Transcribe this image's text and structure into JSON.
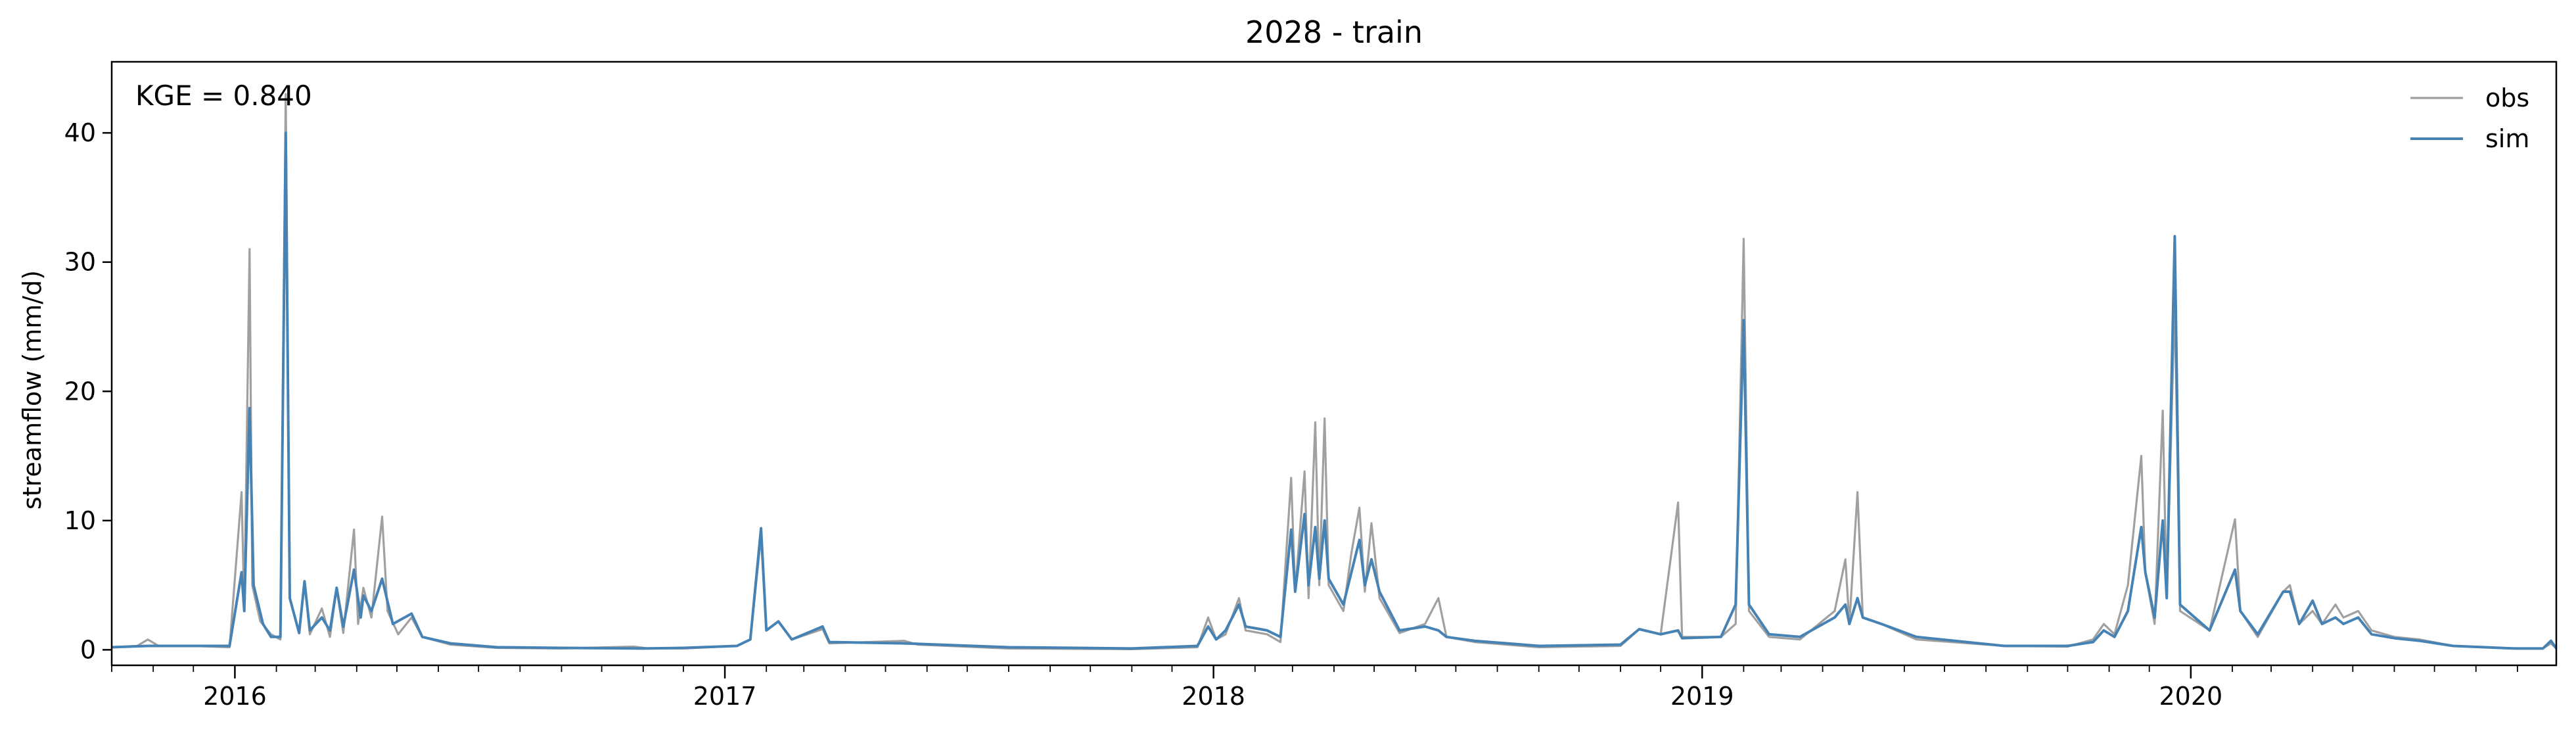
{
  "chart_data": {
    "type": "line",
    "title": "2028 - train",
    "xlabel": "",
    "ylabel": "streamflow (mm/d)",
    "annotation": "KGE = 0.840",
    "x_range": [
      "2015-10-01",
      "2020-09-30"
    ],
    "ylim": [
      -1.2,
      45.5
    ],
    "y_ticks": [
      0,
      10,
      20,
      30,
      40
    ],
    "x_ticks": [
      {
        "label": "2016",
        "date": "2016-01-01"
      },
      {
        "label": "2017",
        "date": "2017-01-01"
      },
      {
        "label": "2018",
        "date": "2018-01-01"
      },
      {
        "label": "2019",
        "date": "2019-01-01"
      },
      {
        "label": "2020",
        "date": "2020-01-01"
      }
    ],
    "grid": false,
    "legend_position": "top-right",
    "series": [
      {
        "name": "obs",
        "color": "#a0a0a0",
        "points": [
          [
            "2015-10-01",
            0.2
          ],
          [
            "2015-10-20",
            0.3
          ],
          [
            "2015-10-28",
            0.8
          ],
          [
            "2015-11-05",
            0.3
          ],
          [
            "2015-12-01",
            0.3
          ],
          [
            "2015-12-28",
            0.2
          ],
          [
            "2016-01-06",
            12.2
          ],
          [
            "2016-01-08",
            3.2
          ],
          [
            "2016-01-12",
            31.0
          ],
          [
            "2016-01-14",
            5.0
          ],
          [
            "2016-01-20",
            2.2
          ],
          [
            "2016-01-28",
            1.2
          ],
          [
            "2016-02-04",
            0.8
          ],
          [
            "2016-02-08",
            43.0
          ],
          [
            "2016-02-11",
            4.0
          ],
          [
            "2016-02-18",
            1.3
          ],
          [
            "2016-02-22",
            5.3
          ],
          [
            "2016-02-26",
            1.2
          ],
          [
            "2016-03-06",
            3.2
          ],
          [
            "2016-03-12",
            1.0
          ],
          [
            "2016-03-17",
            4.8
          ],
          [
            "2016-03-22",
            1.3
          ],
          [
            "2016-03-30",
            9.3
          ],
          [
            "2016-04-02",
            2.0
          ],
          [
            "2016-04-06",
            4.8
          ],
          [
            "2016-04-12",
            2.5
          ],
          [
            "2016-04-20",
            10.3
          ],
          [
            "2016-04-24",
            3.0
          ],
          [
            "2016-05-02",
            1.2
          ],
          [
            "2016-05-12",
            2.5
          ],
          [
            "2016-05-20",
            1.0
          ],
          [
            "2016-06-10",
            0.4
          ],
          [
            "2016-07-15",
            0.15
          ],
          [
            "2016-09-01",
            0.1
          ],
          [
            "2016-10-25",
            0.25
          ],
          [
            "2016-11-05",
            0.1
          ],
          [
            "2016-12-01",
            0.1
          ],
          [
            "2017-01-10",
            0.3
          ],
          [
            "2017-01-20",
            0.8
          ],
          [
            "2017-01-28",
            8.8
          ],
          [
            "2017-02-01",
            1.5
          ],
          [
            "2017-02-10",
            2.2
          ],
          [
            "2017-02-20",
            0.8
          ],
          [
            "2017-03-15",
            1.6
          ],
          [
            "2017-03-20",
            0.5
          ],
          [
            "2017-05-15",
            0.7
          ],
          [
            "2017-05-25",
            0.4
          ],
          [
            "2017-08-01",
            0.1
          ],
          [
            "2017-11-01",
            0.05
          ],
          [
            "2017-12-20",
            0.2
          ],
          [
            "2017-12-28",
            2.5
          ],
          [
            "2018-01-03",
            0.8
          ],
          [
            "2018-01-10",
            1.2
          ],
          [
            "2018-01-20",
            4.0
          ],
          [
            "2018-01-25",
            1.5
          ],
          [
            "2018-02-10",
            1.2
          ],
          [
            "2018-02-20",
            0.6
          ],
          [
            "2018-02-28",
            13.3
          ],
          [
            "2018-03-03",
            4.5
          ],
          [
            "2018-03-10",
            13.8
          ],
          [
            "2018-03-13",
            4.0
          ],
          [
            "2018-03-18",
            17.6
          ],
          [
            "2018-03-21",
            5.0
          ],
          [
            "2018-03-25",
            17.9
          ],
          [
            "2018-03-28",
            5.0
          ],
          [
            "2018-04-08",
            3.0
          ],
          [
            "2018-04-14",
            7.5
          ],
          [
            "2018-04-20",
            11.0
          ],
          [
            "2018-04-24",
            4.5
          ],
          [
            "2018-04-29",
            9.8
          ],
          [
            "2018-05-05",
            4.0
          ],
          [
            "2018-05-20",
            1.3
          ],
          [
            "2018-06-08",
            2.0
          ],
          [
            "2018-06-18",
            4.0
          ],
          [
            "2018-06-24",
            1.0
          ],
          [
            "2018-07-15",
            0.6
          ],
          [
            "2018-09-01",
            0.2
          ],
          [
            "2018-11-01",
            0.3
          ],
          [
            "2018-11-15",
            1.6
          ],
          [
            "2018-12-01",
            1.2
          ],
          [
            "2018-12-14",
            11.4
          ],
          [
            "2018-12-17",
            1.0
          ],
          [
            "2019-01-15",
            1.0
          ],
          [
            "2019-01-26",
            2.0
          ],
          [
            "2019-02-01",
            31.8
          ],
          [
            "2019-02-05",
            3.0
          ],
          [
            "2019-02-20",
            1.0
          ],
          [
            "2019-03-15",
            0.8
          ],
          [
            "2019-04-10",
            3.0
          ],
          [
            "2019-04-18",
            7.0
          ],
          [
            "2019-04-21",
            2.0
          ],
          [
            "2019-04-27",
            12.2
          ],
          [
            "2019-05-01",
            2.5
          ],
          [
            "2019-05-15",
            2.0
          ],
          [
            "2019-06-10",
            0.8
          ],
          [
            "2019-08-15",
            0.3
          ],
          [
            "2019-10-01",
            0.25
          ],
          [
            "2019-10-20",
            0.8
          ],
          [
            "2019-10-28",
            2.0
          ],
          [
            "2019-11-05",
            1.2
          ],
          [
            "2019-11-15",
            5.0
          ],
          [
            "2019-11-25",
            15.0
          ],
          [
            "2019-11-28",
            6.0
          ],
          [
            "2019-12-05",
            2.0
          ],
          [
            "2019-12-11",
            18.5
          ],
          [
            "2019-12-14",
            4.0
          ],
          [
            "2019-12-20",
            27.0
          ],
          [
            "2019-12-24",
            3.0
          ],
          [
            "2020-01-15",
            1.5
          ],
          [
            "2020-02-03",
            10.1
          ],
          [
            "2020-02-07",
            3.0
          ],
          [
            "2020-02-20",
            1.0
          ],
          [
            "2020-03-10",
            4.5
          ],
          [
            "2020-03-15",
            5.0
          ],
          [
            "2020-03-22",
            2.0
          ],
          [
            "2020-04-01",
            3.0
          ],
          [
            "2020-04-08",
            2.0
          ],
          [
            "2020-04-18",
            3.5
          ],
          [
            "2020-04-24",
            2.5
          ],
          [
            "2020-05-05",
            3.0
          ],
          [
            "2020-05-15",
            1.5
          ],
          [
            "2020-06-01",
            1.0
          ],
          [
            "2020-06-20",
            0.8
          ],
          [
            "2020-07-15",
            0.3
          ],
          [
            "2020-08-30",
            0.1
          ],
          [
            "2020-09-20",
            0.1
          ],
          [
            "2020-09-26",
            0.5
          ],
          [
            "2020-09-30",
            0.1
          ]
        ]
      },
      {
        "name": "sim",
        "color": "#4682b4",
        "points": [
          [
            "2015-10-01",
            0.2
          ],
          [
            "2015-10-28",
            0.3
          ],
          [
            "2015-12-01",
            0.3
          ],
          [
            "2015-12-28",
            0.3
          ],
          [
            "2016-01-06",
            6.0
          ],
          [
            "2016-01-08",
            3.0
          ],
          [
            "2016-01-12",
            18.7
          ],
          [
            "2016-01-15",
            5.0
          ],
          [
            "2016-01-22",
            2.0
          ],
          [
            "2016-01-28",
            1.0
          ],
          [
            "2016-02-04",
            1.0
          ],
          [
            "2016-02-08",
            40.0
          ],
          [
            "2016-02-11",
            4.0
          ],
          [
            "2016-02-18",
            1.3
          ],
          [
            "2016-02-22",
            5.3
          ],
          [
            "2016-02-26",
            1.5
          ],
          [
            "2016-03-06",
            2.5
          ],
          [
            "2016-03-12",
            1.5
          ],
          [
            "2016-03-17",
            4.8
          ],
          [
            "2016-03-22",
            1.8
          ],
          [
            "2016-03-30",
            6.2
          ],
          [
            "2016-04-04",
            2.5
          ],
          [
            "2016-04-06",
            4.2
          ],
          [
            "2016-04-12",
            3.0
          ],
          [
            "2016-04-20",
            5.5
          ],
          [
            "2016-04-28",
            2.0
          ],
          [
            "2016-05-12",
            2.8
          ],
          [
            "2016-05-20",
            1.0
          ],
          [
            "2016-06-10",
            0.5
          ],
          [
            "2016-07-15",
            0.2
          ],
          [
            "2016-09-01",
            0.15
          ],
          [
            "2016-11-01",
            0.1
          ],
          [
            "2016-12-01",
            0.15
          ],
          [
            "2017-01-10",
            0.3
          ],
          [
            "2017-01-20",
            0.8
          ],
          [
            "2017-01-28",
            9.4
          ],
          [
            "2017-02-01",
            1.5
          ],
          [
            "2017-02-10",
            2.2
          ],
          [
            "2017-02-20",
            0.8
          ],
          [
            "2017-03-15",
            1.8
          ],
          [
            "2017-03-20",
            0.6
          ],
          [
            "2017-05-15",
            0.5
          ],
          [
            "2017-08-01",
            0.2
          ],
          [
            "2017-11-01",
            0.1
          ],
          [
            "2017-12-20",
            0.3
          ],
          [
            "2017-12-28",
            1.8
          ],
          [
            "2018-01-03",
            0.8
          ],
          [
            "2018-01-10",
            1.5
          ],
          [
            "2018-01-20",
            3.5
          ],
          [
            "2018-01-25",
            1.8
          ],
          [
            "2018-02-10",
            1.5
          ],
          [
            "2018-02-20",
            1.0
          ],
          [
            "2018-02-28",
            9.3
          ],
          [
            "2018-03-03",
            4.5
          ],
          [
            "2018-03-10",
            10.5
          ],
          [
            "2018-03-13",
            5.0
          ],
          [
            "2018-03-18",
            9.5
          ],
          [
            "2018-03-21",
            5.5
          ],
          [
            "2018-03-25",
            10.0
          ],
          [
            "2018-03-28",
            5.5
          ],
          [
            "2018-04-08",
            3.5
          ],
          [
            "2018-04-14",
            6.0
          ],
          [
            "2018-04-20",
            8.5
          ],
          [
            "2018-04-24",
            5.0
          ],
          [
            "2018-04-29",
            7.0
          ],
          [
            "2018-05-05",
            4.5
          ],
          [
            "2018-05-20",
            1.5
          ],
          [
            "2018-06-08",
            1.8
          ],
          [
            "2018-06-18",
            1.5
          ],
          [
            "2018-06-24",
            1.0
          ],
          [
            "2018-07-15",
            0.7
          ],
          [
            "2018-09-01",
            0.3
          ],
          [
            "2018-11-01",
            0.4
          ],
          [
            "2018-11-15",
            1.6
          ],
          [
            "2018-12-01",
            1.2
          ],
          [
            "2018-12-14",
            1.5
          ],
          [
            "2018-12-17",
            0.9
          ],
          [
            "2019-01-15",
            1.0
          ],
          [
            "2019-01-26",
            3.5
          ],
          [
            "2019-02-01",
            25.5
          ],
          [
            "2019-02-05",
            3.5
          ],
          [
            "2019-02-20",
            1.2
          ],
          [
            "2019-03-15",
            1.0
          ],
          [
            "2019-04-10",
            2.5
          ],
          [
            "2019-04-18",
            3.5
          ],
          [
            "2019-04-21",
            2.0
          ],
          [
            "2019-04-27",
            4.0
          ],
          [
            "2019-05-01",
            2.5
          ],
          [
            "2019-05-15",
            2.0
          ],
          [
            "2019-06-10",
            1.0
          ],
          [
            "2019-08-15",
            0.3
          ],
          [
            "2019-10-01",
            0.3
          ],
          [
            "2019-10-20",
            0.6
          ],
          [
            "2019-10-28",
            1.5
          ],
          [
            "2019-11-05",
            1.0
          ],
          [
            "2019-11-15",
            3.0
          ],
          [
            "2019-11-25",
            9.5
          ],
          [
            "2019-11-28",
            6.0
          ],
          [
            "2019-12-05",
            2.5
          ],
          [
            "2019-12-11",
            10.0
          ],
          [
            "2019-12-14",
            4.0
          ],
          [
            "2019-12-20",
            32.0
          ],
          [
            "2019-12-24",
            3.5
          ],
          [
            "2020-01-15",
            1.5
          ],
          [
            "2020-02-03",
            6.2
          ],
          [
            "2020-02-07",
            3.0
          ],
          [
            "2020-02-20",
            1.2
          ],
          [
            "2020-03-10",
            4.5
          ],
          [
            "2020-03-15",
            4.5
          ],
          [
            "2020-03-22",
            2.0
          ],
          [
            "2020-04-01",
            3.8
          ],
          [
            "2020-04-08",
            2.0
          ],
          [
            "2020-04-18",
            2.5
          ],
          [
            "2020-04-24",
            2.0
          ],
          [
            "2020-05-05",
            2.5
          ],
          [
            "2020-05-15",
            1.2
          ],
          [
            "2020-06-01",
            0.9
          ],
          [
            "2020-06-20",
            0.7
          ],
          [
            "2020-07-15",
            0.3
          ],
          [
            "2020-08-30",
            0.1
          ],
          [
            "2020-09-20",
            0.1
          ],
          [
            "2020-09-26",
            0.7
          ],
          [
            "2020-09-30",
            0.1
          ]
        ]
      }
    ]
  }
}
